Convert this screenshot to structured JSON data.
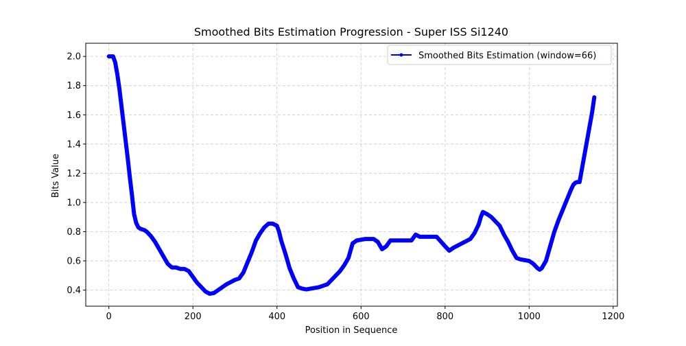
{
  "chart_data": {
    "type": "line",
    "title": "Smoothed Bits Estimation Progression - Super ISS Si1240",
    "xlabel": "Position in Sequence",
    "ylabel": "Bits Value",
    "xlim": [
      -55,
      1210
    ],
    "ylim": [
      0.29,
      2.09
    ],
    "xticks": [
      0,
      200,
      400,
      600,
      800,
      1000,
      1200
    ],
    "yticks": [
      0.4,
      0.6,
      0.8,
      1.0,
      1.2,
      1.4,
      1.6,
      1.8,
      2.0
    ],
    "xtick_labels": [
      "0",
      "200",
      "400",
      "600",
      "800",
      "1000",
      "1200"
    ],
    "ytick_labels": [
      "0.4",
      "0.6",
      "0.8",
      "1.0",
      "1.2",
      "1.4",
      "1.6",
      "1.8",
      "2.0"
    ],
    "grid": true,
    "legend_position": "upper right",
    "series": [
      {
        "name": "Smoothed Bits Estimation (window=66)",
        "color": "#0000ff",
        "marker": "dot",
        "x": [
          0,
          10,
          15,
          20,
          25,
          30,
          35,
          40,
          45,
          50,
          55,
          60,
          65,
          70,
          75,
          80,
          85,
          90,
          100,
          110,
          120,
          130,
          140,
          150,
          160,
          170,
          180,
          190,
          200,
          210,
          220,
          230,
          240,
          250,
          260,
          270,
          280,
          290,
          300,
          310,
          320,
          330,
          340,
          350,
          360,
          370,
          380,
          390,
          400,
          405,
          410,
          420,
          430,
          440,
          450,
          460,
          470,
          480,
          490,
          500,
          510,
          520,
          530,
          540,
          550,
          560,
          570,
          580,
          590,
          600,
          610,
          620,
          630,
          640,
          650,
          660,
          670,
          680,
          690,
          700,
          720,
          730,
          740,
          750,
          760,
          780,
          800,
          810,
          820,
          830,
          840,
          850,
          860,
          870,
          880,
          885,
          890,
          900,
          910,
          920,
          930,
          940,
          950,
          960,
          970,
          980,
          1000,
          1010,
          1020,
          1025,
          1030,
          1040,
          1050,
          1060,
          1070,
          1080,
          1090,
          1100,
          1105,
          1110,
          1115,
          1120,
          1125,
          1130,
          1135,
          1140,
          1145,
          1150,
          1155
        ],
        "y": [
          2.0,
          2.0,
          1.96,
          1.88,
          1.78,
          1.66,
          1.54,
          1.42,
          1.3,
          1.17,
          1.05,
          0.92,
          0.86,
          0.83,
          0.82,
          0.815,
          0.81,
          0.8,
          0.77,
          0.73,
          0.68,
          0.63,
          0.58,
          0.555,
          0.555,
          0.545,
          0.545,
          0.53,
          0.49,
          0.45,
          0.42,
          0.39,
          0.375,
          0.38,
          0.4,
          0.42,
          0.44,
          0.455,
          0.47,
          0.48,
          0.52,
          0.59,
          0.66,
          0.74,
          0.79,
          0.83,
          0.855,
          0.855,
          0.84,
          0.8,
          0.74,
          0.65,
          0.55,
          0.48,
          0.42,
          0.41,
          0.405,
          0.41,
          0.415,
          0.42,
          0.43,
          0.44,
          0.47,
          0.5,
          0.53,
          0.57,
          0.62,
          0.72,
          0.74,
          0.745,
          0.75,
          0.75,
          0.75,
          0.73,
          0.68,
          0.7,
          0.74,
          0.74,
          0.74,
          0.74,
          0.74,
          0.78,
          0.765,
          0.765,
          0.765,
          0.765,
          0.7,
          0.67,
          0.69,
          0.705,
          0.72,
          0.735,
          0.75,
          0.79,
          0.85,
          0.9,
          0.935,
          0.92,
          0.9,
          0.87,
          0.84,
          0.78,
          0.73,
          0.67,
          0.62,
          0.61,
          0.6,
          0.58,
          0.55,
          0.54,
          0.55,
          0.6,
          0.7,
          0.8,
          0.88,
          0.95,
          1.02,
          1.09,
          1.12,
          1.135,
          1.14,
          1.14,
          1.22,
          1.3,
          1.38,
          1.46,
          1.54,
          1.62,
          1.72
        ]
      }
    ]
  }
}
